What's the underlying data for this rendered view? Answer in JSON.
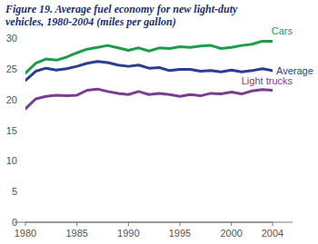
{
  "chart_data": {
    "type": "line",
    "title": "Figure 19. Average fuel economy for new light-duty vehicles, 1980-2004 (miles per gallon)",
    "x": [
      1980,
      1981,
      1982,
      1983,
      1984,
      1985,
      1986,
      1987,
      1988,
      1989,
      1990,
      1991,
      1992,
      1993,
      1994,
      1995,
      1996,
      1997,
      1998,
      1999,
      2000,
      2001,
      2002,
      2003,
      2004
    ],
    "series": [
      {
        "name": "Cars",
        "color": "#1e9b4b",
        "values": [
          24.3,
          25.9,
          26.6,
          26.4,
          26.9,
          27.6,
          28.2,
          28.5,
          28.8,
          28.4,
          28.0,
          28.4,
          27.9,
          28.4,
          28.3,
          28.6,
          28.5,
          28.7,
          28.8,
          28.3,
          28.5,
          28.8,
          29.0,
          29.5,
          29.5
        ]
      },
      {
        "name": "Average",
        "color": "#2a3d8f",
        "values": [
          23.1,
          24.6,
          25.1,
          24.8,
          25.0,
          25.4,
          25.9,
          26.2,
          26.0,
          25.6,
          25.4,
          25.6,
          25.1,
          25.2,
          24.7,
          24.9,
          24.9,
          24.6,
          24.7,
          24.5,
          24.8,
          24.5,
          24.7,
          25.0,
          24.7
        ]
      },
      {
        "name": "Light trucks",
        "color": "#7b3d91",
        "values": [
          18.5,
          20.1,
          20.5,
          20.7,
          20.6,
          20.7,
          21.5,
          21.7,
          21.3,
          21.0,
          20.8,
          21.3,
          20.8,
          21.0,
          20.8,
          20.5,
          20.8,
          20.6,
          21.0,
          20.9,
          21.2,
          20.9,
          21.4,
          21.6,
          21.5
        ]
      }
    ],
    "xlim": [
      1980,
      2004
    ],
    "xticks": [
      1980,
      1985,
      1990,
      1995,
      2000,
      2004
    ],
    "ylim": [
      0,
      30
    ],
    "yticks": [
      0,
      5,
      10,
      15,
      20,
      25,
      30
    ],
    "grid": false
  }
}
